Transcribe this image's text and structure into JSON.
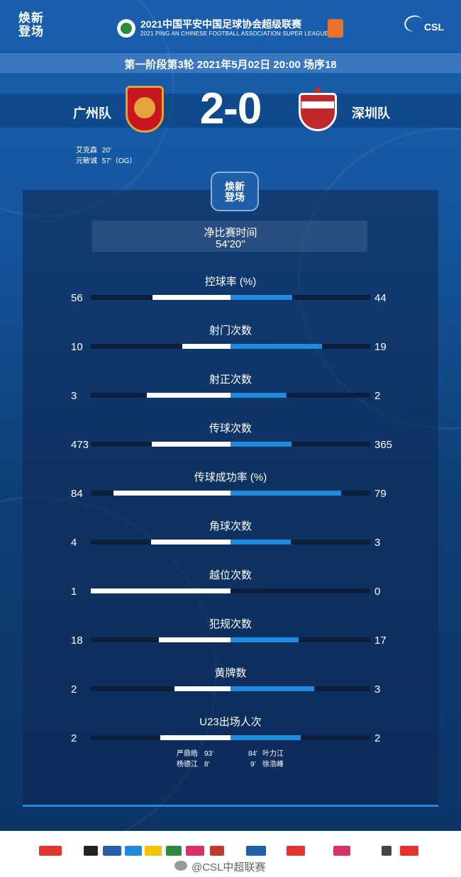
{
  "header": {
    "brand": [
      "焕新",
      "登场"
    ],
    "league_title": "2021中国平安中国足球协会超级联赛",
    "league_subtitle": "2021 PING AN CHINESE FOOTBALL ASSOCIATION SUPER LEAGUE",
    "csl_label": "CSL"
  },
  "match": {
    "info": "第一阶段第3轮  2021年5月02日 20:00 场序18",
    "home_team": "广州队",
    "away_team": "深圳队",
    "score": "2-0"
  },
  "scorers": [
    {
      "name": "艾克森",
      "minute": "20'"
    },
    {
      "name": "元敏诚",
      "minute": "57'（OG）"
    }
  ],
  "panel": {
    "logo_text": [
      "焕新",
      "登场"
    ],
    "net_time_title": "净比赛时间",
    "net_time_value": "54'20''"
  },
  "stats": [
    {
      "title": "控球率 (%)",
      "home": "56",
      "away": "44",
      "home_frac": 0.56,
      "away_frac": 0.44
    },
    {
      "title": "射门次数",
      "home": "10",
      "away": "19",
      "home_frac": 0.345,
      "away_frac": 0.655
    },
    {
      "title": "射正次数",
      "home": "3",
      "away": "2",
      "home_frac": 0.6,
      "away_frac": 0.4
    },
    {
      "title": "传球次数",
      "home": "473",
      "away": "365",
      "home_frac": 0.564,
      "away_frac": 0.436
    },
    {
      "title": "传球成功率 (%)",
      "home": "84",
      "away": "79",
      "home_frac": 0.84,
      "away_frac": 0.79
    },
    {
      "title": "角球次数",
      "home": "4",
      "away": "3",
      "home_frac": 0.571,
      "away_frac": 0.429
    },
    {
      "title": "越位次数",
      "home": "1",
      "away": "0",
      "home_frac": 1.0,
      "away_frac": 0.0
    },
    {
      "title": "犯规次数",
      "home": "18",
      "away": "17",
      "home_frac": 0.514,
      "away_frac": 0.486
    },
    {
      "title": "黄牌数",
      "home": "2",
      "away": "3",
      "home_frac": 0.4,
      "away_frac": 0.6
    },
    {
      "title": "U23出场人次",
      "home": "2",
      "away": "2",
      "home_frac": 0.5,
      "away_frac": 0.5
    }
  ],
  "u23": {
    "home": [
      {
        "name": "严鼎皓",
        "minute": "93'"
      },
      {
        "name": "杨德江",
        "minute": "8'"
      }
    ],
    "away": [
      {
        "minute": "84'",
        "name": "叶力江"
      },
      {
        "minute": "9'",
        "name": "徐浩峰"
      }
    ]
  },
  "watermark": "@CSL中超联赛",
  "colors": {
    "home_bar": "#ffffff",
    "away_bar": "#1e8ae0",
    "accent": "#1e8ae0"
  }
}
